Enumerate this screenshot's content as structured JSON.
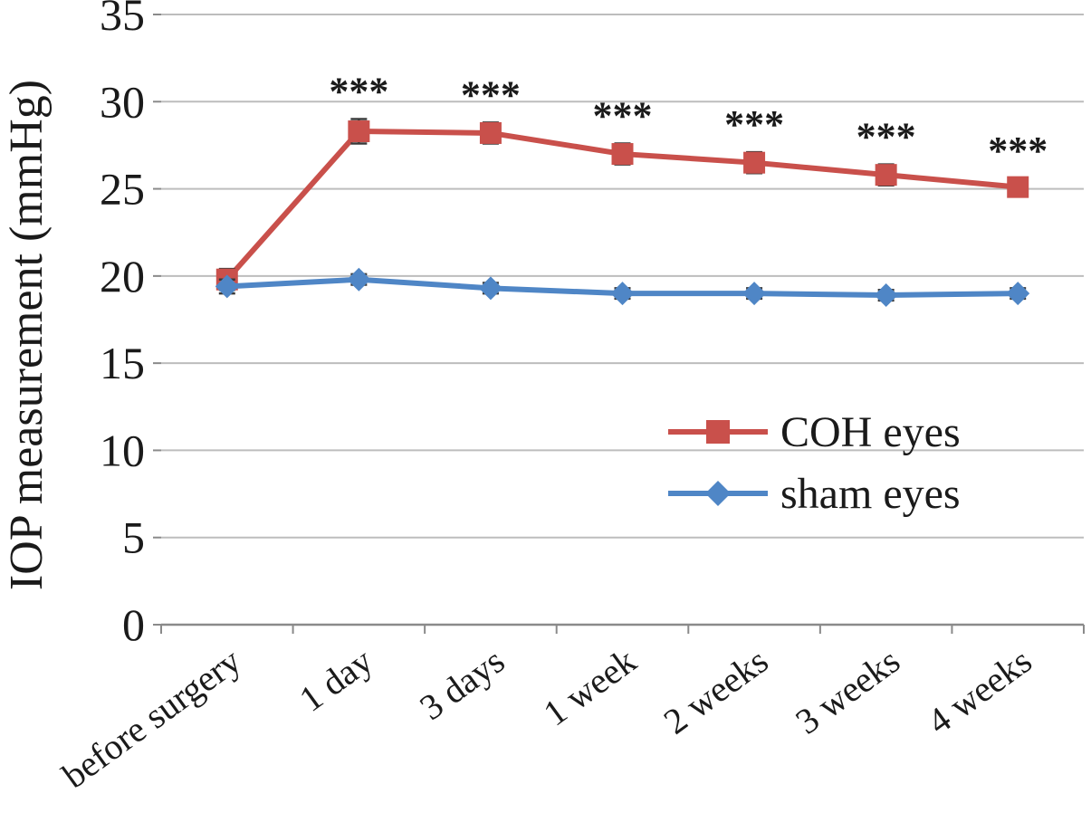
{
  "chart_data": {
    "type": "line",
    "title": "",
    "xlabel": "",
    "ylabel": "IOP measurement (mmHg)",
    "ylim": [
      0,
      35
    ],
    "yticks": [
      0,
      5,
      10,
      15,
      20,
      25,
      30,
      35
    ],
    "grid": true,
    "legend_position": "middle-right",
    "categories": [
      "before surgery",
      "1 day",
      "3 days",
      "1 week",
      "2 weeks",
      "3 weeks",
      "4 weeks"
    ],
    "series": [
      {
        "name": "COH eyes",
        "marker": "square",
        "color": "#c9504b",
        "values": [
          19.8,
          28.3,
          28.2,
          27.0,
          26.5,
          25.8,
          25.1
        ],
        "errors": [
          0.6,
          0.7,
          0.6,
          0.6,
          0.6,
          0.6,
          0.5
        ]
      },
      {
        "name": "sham eyes",
        "marker": "diamond",
        "color": "#4f86c6",
        "values": [
          19.4,
          19.8,
          19.3,
          19.0,
          19.0,
          18.9,
          19.0
        ],
        "errors": [
          0.4,
          0.3,
          0.3,
          0.3,
          0.3,
          0.3,
          0.3
        ]
      }
    ],
    "annotations": [
      {
        "series": "COH eyes",
        "index": 1,
        "text": "***"
      },
      {
        "series": "COH eyes",
        "index": 2,
        "text": "***"
      },
      {
        "series": "COH eyes",
        "index": 3,
        "text": "***"
      },
      {
        "series": "COH eyes",
        "index": 4,
        "text": "***"
      },
      {
        "series": "COH eyes",
        "index": 5,
        "text": "***"
      },
      {
        "series": "COH eyes",
        "index": 6,
        "text": "***"
      }
    ],
    "colors": {
      "gridline": "#bdbdbd",
      "axis": "#8a8a8a",
      "text": "#1a1a1a",
      "error_bar": "#3a3a3a",
      "background": "#ffffff"
    }
  }
}
